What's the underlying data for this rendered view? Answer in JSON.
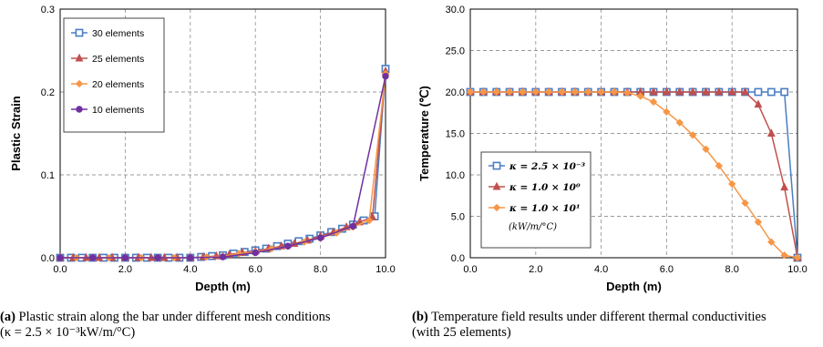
{
  "chart_data": [
    {
      "type": "line",
      "panel": "(a)",
      "xlabel": "Depth (m)",
      "ylabel": "Plastic Strain",
      "xlim": [
        0,
        10
      ],
      "ylim": [
        0,
        0.3
      ],
      "xticks": [
        "0.0",
        "2.0",
        "4.0",
        "6.0",
        "8.0",
        "10.0"
      ],
      "yticks": [
        "0.0",
        "0.1",
        "0.2",
        "0.3"
      ],
      "grid": true,
      "legend_position": "top-left",
      "series": [
        {
          "name": "30 elements",
          "color": "#4a7ec4",
          "marker": "square",
          "x": [
            0,
            0.333,
            0.667,
            1.0,
            1.333,
            1.667,
            2.0,
            2.333,
            2.667,
            3.0,
            3.333,
            3.667,
            4.0,
            4.333,
            4.667,
            5.0,
            5.333,
            5.667,
            6.0,
            6.333,
            6.667,
            7.0,
            7.333,
            7.667,
            8.0,
            8.333,
            8.667,
            9.0,
            9.333,
            9.667,
            10.0
          ],
          "y": [
            0,
            0,
            0,
            0,
            0,
            0,
            0,
            0,
            0,
            0,
            0,
            0,
            0,
            0.001,
            0.002,
            0.003,
            0.005,
            0.007,
            0.009,
            0.011,
            0.014,
            0.017,
            0.02,
            0.023,
            0.027,
            0.031,
            0.035,
            0.04,
            0.045,
            0.05,
            0.228
          ]
        },
        {
          "name": "25 elements",
          "color": "#c0504d",
          "marker": "triangle",
          "x": [
            0,
            0.4,
            0.8,
            1.2,
            1.6,
            2.0,
            2.4,
            2.8,
            3.2,
            3.6,
            4.0,
            4.4,
            4.8,
            5.2,
            5.6,
            6.0,
            6.4,
            6.8,
            7.2,
            7.6,
            8.0,
            8.4,
            8.8,
            9.2,
            9.6,
            10.0
          ],
          "y": [
            0,
            0,
            0,
            0,
            0,
            0,
            0,
            0,
            0,
            0,
            0,
            0.001,
            0.002,
            0.004,
            0.006,
            0.008,
            0.011,
            0.014,
            0.017,
            0.021,
            0.026,
            0.031,
            0.037,
            0.043,
            0.049,
            0.225
          ]
        },
        {
          "name": "20 elements",
          "color": "#f79646",
          "marker": "diamond",
          "x": [
            0,
            0.5,
            1.0,
            1.5,
            2.0,
            2.5,
            3.0,
            3.5,
            4.0,
            4.5,
            5.0,
            5.5,
            6.0,
            6.5,
            7.0,
            7.5,
            8.0,
            8.5,
            9.0,
            9.5,
            10.0
          ],
          "y": [
            0,
            0,
            0,
            0,
            0,
            0,
            0,
            0,
            0,
            0.001,
            0.002,
            0.005,
            0.007,
            0.011,
            0.014,
            0.019,
            0.024,
            0.03,
            0.037,
            0.045,
            0.222
          ]
        },
        {
          "name": "10 elements",
          "color": "#7030a0",
          "marker": "circle",
          "x": [
            0,
            1.0,
            2.0,
            3.0,
            4.0,
            5.0,
            6.0,
            7.0,
            8.0,
            9.0,
            10.0
          ],
          "y": [
            0,
            0,
            0,
            0,
            0,
            0.001,
            0.006,
            0.014,
            0.024,
            0.038,
            0.219
          ]
        }
      ]
    },
    {
      "type": "line",
      "panel": "(b)",
      "xlabel": "Depth (m)",
      "ylabel": "Temperature (℃)",
      "xlim": [
        0,
        10
      ],
      "ylim": [
        0,
        30
      ],
      "xticks": [
        "0.0",
        "2.0",
        "4.0",
        "6.0",
        "8.0",
        "10.0"
      ],
      "yticks": [
        "0.0",
        "5.0",
        "10.0",
        "15.0",
        "20.0",
        "25.0",
        "30.0"
      ],
      "grid": true,
      "legend_position": "bottom-left",
      "legend_unit": "(kW/m/°C)",
      "series": [
        {
          "name": "κ = 2.5 × 10⁻³",
          "color": "#4a7ec4",
          "marker": "square",
          "x": [
            0,
            0.4,
            0.8,
            1.2,
            1.6,
            2.0,
            2.4,
            2.8,
            3.2,
            3.6,
            4.0,
            4.4,
            4.8,
            5.2,
            5.6,
            6.0,
            6.4,
            6.8,
            7.2,
            7.6,
            8.0,
            8.4,
            8.8,
            9.2,
            9.6,
            10.0
          ],
          "y": [
            20,
            20,
            20,
            20,
            20,
            20,
            20,
            20,
            20,
            20,
            20,
            20,
            20,
            20,
            20,
            20,
            20,
            20,
            20,
            20,
            20,
            20,
            20,
            20,
            20,
            0
          ]
        },
        {
          "name": "κ = 1.0 × 10⁰",
          "color": "#c0504d",
          "marker": "triangle",
          "x": [
            0,
            0.4,
            0.8,
            1.2,
            1.6,
            2.0,
            2.4,
            2.8,
            3.2,
            3.6,
            4.0,
            4.4,
            4.8,
            5.2,
            5.6,
            6.0,
            6.4,
            6.8,
            7.2,
            7.6,
            8.0,
            8.4,
            8.8,
            9.2,
            9.6,
            10.0
          ],
          "y": [
            20,
            20,
            20,
            20,
            20,
            20,
            20,
            20,
            20,
            20,
            20,
            20,
            20,
            20,
            20,
            20,
            20,
            20,
            20,
            20,
            20,
            20,
            18.5,
            15,
            8.5,
            0
          ]
        },
        {
          "name": "κ = 1.0 × 10¹",
          "color": "#f79646",
          "marker": "diamond",
          "x": [
            0,
            0.4,
            0.8,
            1.2,
            1.6,
            2.0,
            2.4,
            2.8,
            3.2,
            3.6,
            4.0,
            4.4,
            4.8,
            5.2,
            5.6,
            6.0,
            6.4,
            6.8,
            7.2,
            7.6,
            8.0,
            8.4,
            8.8,
            9.2,
            9.6,
            10.0
          ],
          "y": [
            20,
            20,
            20,
            20,
            20,
            20,
            20,
            20,
            20,
            20,
            20,
            20,
            19.9,
            19.5,
            18.8,
            17.6,
            16.3,
            14.8,
            13.1,
            11.1,
            8.9,
            6.6,
            4.3,
            1.9,
            0.3,
            0
          ]
        }
      ]
    }
  ],
  "captions": {
    "a_label": "(a)",
    "a_line1": "Plastic strain along the bar under different mesh conditions",
    "a_line2": "(κ = 2.5 × 10⁻³kW/m/°C)",
    "b_label": "(b)",
    "b_line1": "Temperature field results under different thermal conductivities",
    "b_line2": "(with 25 elements)"
  }
}
